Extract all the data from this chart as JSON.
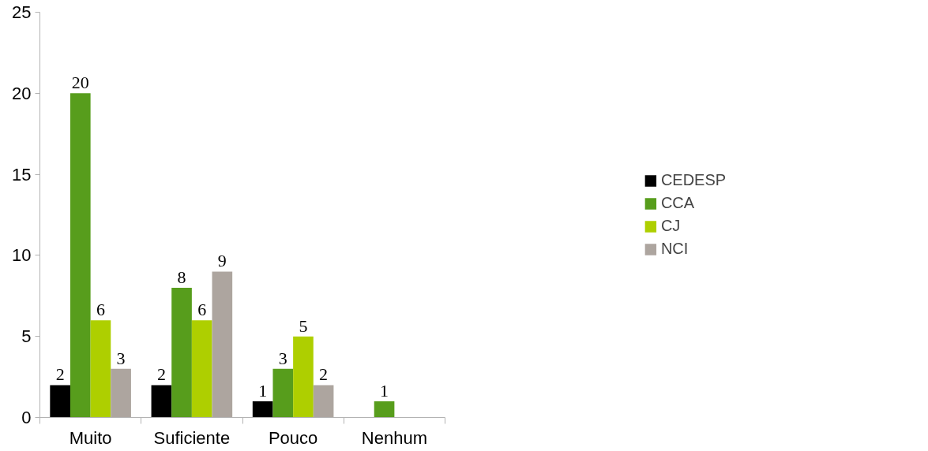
{
  "chart_data": {
    "type": "bar",
    "categories": [
      "Muito",
      "Suficiente",
      "Pouco",
      "Nenhum"
    ],
    "series": [
      {
        "name": "CEDESP",
        "color": "#000000",
        "values": [
          2,
          2,
          1,
          null
        ]
      },
      {
        "name": "CCA",
        "color": "#579d1c",
        "values": [
          20,
          8,
          3,
          1
        ]
      },
      {
        "name": "CJ",
        "color": "#aecf00",
        "values": [
          6,
          6,
          5,
          null
        ]
      },
      {
        "name": "NCI",
        "color": "#ada59f",
        "values": [
          3,
          9,
          2,
          null
        ]
      }
    ],
    "ylim": [
      0,
      25
    ],
    "yticks": [
      0,
      5,
      10,
      15,
      20,
      25
    ],
    "grid": false,
    "legend": "right",
    "data_labels": true
  }
}
